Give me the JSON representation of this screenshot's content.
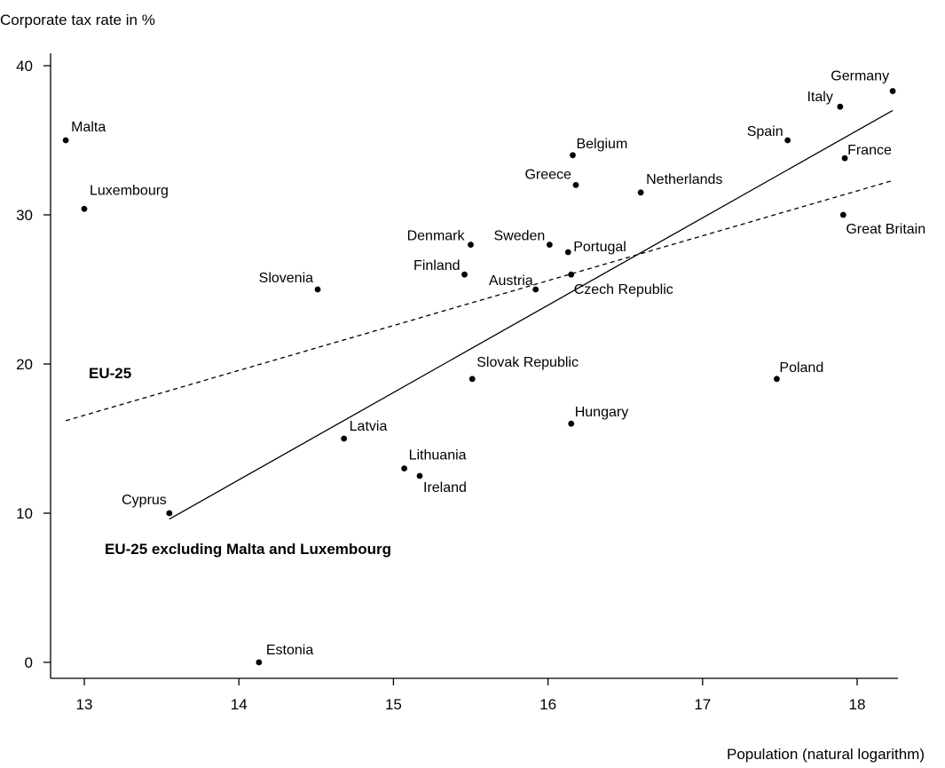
{
  "chart_data": {
    "type": "scatter",
    "title": "",
    "xlabel": "Population (natural logarithm)",
    "ylabel": "Corporate tax rate in %",
    "xlim": [
      12.8,
      18.25
    ],
    "ylim": [
      -1,
      41
    ],
    "xticks": [
      13,
      14,
      15,
      16,
      17,
      18
    ],
    "yticks": [
      0,
      10,
      20,
      30,
      40
    ],
    "grid": false,
    "points": [
      {
        "label": "Malta",
        "x": 12.88,
        "y": 35.0
      },
      {
        "label": "Luxembourg",
        "x": 13.0,
        "y": 30.4
      },
      {
        "label": "Cyprus",
        "x": 13.55,
        "y": 10.0
      },
      {
        "label": "Estonia",
        "x": 14.13,
        "y": 0.0
      },
      {
        "label": "Slovenia",
        "x": 14.51,
        "y": 25.0
      },
      {
        "label": "Latvia",
        "x": 14.68,
        "y": 15.0
      },
      {
        "label": "Lithuania",
        "x": 15.07,
        "y": 13.0
      },
      {
        "label": "Ireland",
        "x": 15.17,
        "y": 12.5
      },
      {
        "label": "Finland",
        "x": 15.46,
        "y": 26.0
      },
      {
        "label": "Denmark",
        "x": 15.5,
        "y": 28.0
      },
      {
        "label": "Slovak Republic",
        "x": 15.51,
        "y": 19.0
      },
      {
        "label": "Austria",
        "x": 15.92,
        "y": 25.0
      },
      {
        "label": "Sweden",
        "x": 16.01,
        "y": 28.0
      },
      {
        "label": "Portugal",
        "x": 16.13,
        "y": 27.5
      },
      {
        "label": "Czech Republic",
        "x": 16.15,
        "y": 26.0
      },
      {
        "label": "Hungary",
        "x": 16.15,
        "y": 16.0
      },
      {
        "label": "Belgium",
        "x": 16.16,
        "y": 34.0
      },
      {
        "label": "Greece",
        "x": 16.18,
        "y": 32.0
      },
      {
        "label": "Netherlands",
        "x": 16.6,
        "y": 31.5
      },
      {
        "label": "Poland",
        "x": 17.48,
        "y": 19.0
      },
      {
        "label": "Spain",
        "x": 17.55,
        "y": 35.0
      },
      {
        "label": "Italy",
        "x": 17.89,
        "y": 37.25
      },
      {
        "label": "Great Britain",
        "x": 17.91,
        "y": 30.0
      },
      {
        "label": "France",
        "x": 17.92,
        "y": 33.8
      },
      {
        "label": "Germany",
        "x": 18.23,
        "y": 38.3
      }
    ],
    "fit_lines": [
      {
        "name": "EU-25",
        "style": "dashed",
        "x": [
          12.88,
          18.23
        ],
        "y": [
          16.2,
          32.3
        ]
      },
      {
        "name": "EU-25 excluding Malta and Luxembourg",
        "style": "solid",
        "x": [
          13.55,
          18.23
        ],
        "y": [
          9.6,
          37.0
        ]
      }
    ]
  }
}
